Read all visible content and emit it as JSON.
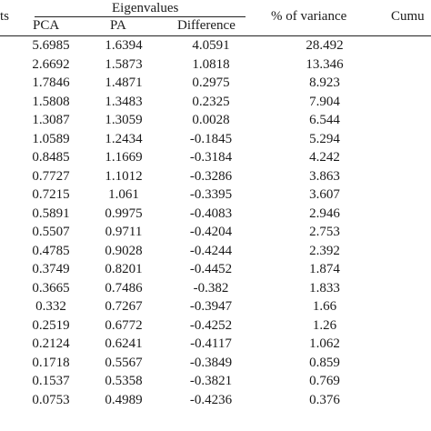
{
  "header": {
    "components_label_fragment": "ts",
    "eigenvalues_label": "Eigenvalues",
    "pca_label": "PCA",
    "pa_label": "PA",
    "difference_label": "Difference",
    "variance_label": "% of variance",
    "cumulative_label_fragment": "Cumu"
  },
  "rows": [
    {
      "pca": "5.6985",
      "pa": "1.6394",
      "difference": "4.0591",
      "variance": "28.492"
    },
    {
      "pca": "2.6692",
      "pa": "1.5873",
      "difference": "1.0818",
      "variance": "13.346"
    },
    {
      "pca": "1.7846",
      "pa": "1.4871",
      "difference": "0.2975",
      "variance": "8.923"
    },
    {
      "pca": "1.5808",
      "pa": "1.3483",
      "difference": "0.2325",
      "variance": "7.904"
    },
    {
      "pca": "1.3087",
      "pa": "1.3059",
      "difference": "0.0028",
      "variance": "6.544"
    },
    {
      "pca": "1.0589",
      "pa": "1.2434",
      "difference": "-0.1845",
      "variance": "5.294"
    },
    {
      "pca": "0.8485",
      "pa": "1.1669",
      "difference": "-0.3184",
      "variance": "4.242"
    },
    {
      "pca": "0.7727",
      "pa": "1.1012",
      "difference": "-0.3286",
      "variance": "3.863"
    },
    {
      "pca": "0.7215",
      "pa": "1.061",
      "difference": "-0.3395",
      "variance": "3.607"
    },
    {
      "pca": "0.5891",
      "pa": "0.9975",
      "difference": "-0.4083",
      "variance": "2.946"
    },
    {
      "pca": "0.5507",
      "pa": "0.9711",
      "difference": "-0.4204",
      "variance": "2.753"
    },
    {
      "pca": "0.4785",
      "pa": "0.9028",
      "difference": "-0.4244",
      "variance": "2.392"
    },
    {
      "pca": "0.3749",
      "pa": "0.8201",
      "difference": "-0.4452",
      "variance": "1.874"
    },
    {
      "pca": "0.3665",
      "pa": "0.7486",
      "difference": "-0.382",
      "variance": "1.833"
    },
    {
      "pca": "0.332",
      "pa": "0.7267",
      "difference": "-0.3947",
      "variance": "1.66"
    },
    {
      "pca": "0.2519",
      "pa": "0.6772",
      "difference": "-0.4252",
      "variance": "1.26"
    },
    {
      "pca": "0.2124",
      "pa": "0.6241",
      "difference": "-0.4117",
      "variance": "1.062"
    },
    {
      "pca": "0.1718",
      "pa": "0.5567",
      "difference": "-0.3849",
      "variance": "0.859"
    },
    {
      "pca": "0.1537",
      "pa": "0.5358",
      "difference": "-0.3821",
      "variance": "0.769"
    },
    {
      "pca": "0.0753",
      "pa": "0.4989",
      "difference": "-0.4236",
      "variance": "0.376"
    }
  ]
}
